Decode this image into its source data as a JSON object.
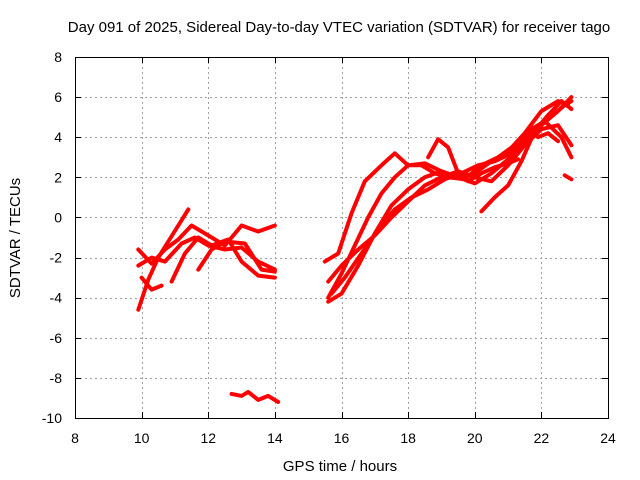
{
  "chart_data": {
    "type": "scatter",
    "title": "Day 091 of 2025, Sidereal Day-to-day VTEC variation (SDTVAR) for receiver tago",
    "xlabel": "GPS time / hours",
    "ylabel": "SDTVAR / TECUs",
    "xlim": [
      8,
      24
    ],
    "ylim": [
      -10,
      8
    ],
    "xticks": [
      "8",
      "10",
      "12",
      "14",
      "16",
      "18",
      "20",
      "22",
      "24"
    ],
    "yticks": [
      "-10",
      "-8",
      "-6",
      "-4",
      "-2",
      "0",
      "2",
      "4",
      "6",
      "8"
    ],
    "grid": true,
    "color": "#ff0000",
    "series": [
      {
        "x": [
          9.9,
          10.2,
          10.5,
          10.8,
          11.1,
          11.4
        ],
        "y": [
          -4.6,
          -3.1,
          -2.0,
          -1.2,
          -0.4,
          0.4
        ]
      },
      {
        "x": [
          9.9,
          10.3,
          10.7,
          11.1,
          11.5,
          12.0,
          12.5,
          13.0,
          13.5,
          14.0
        ],
        "y": [
          -1.6,
          -2.3,
          -1.6,
          -1.1,
          -0.4,
          -0.9,
          -1.4,
          -0.4,
          -0.7,
          -0.4
        ]
      },
      {
        "x": [
          9.9,
          10.3,
          10.7,
          11.2,
          11.6,
          12.0,
          12.5,
          13.0,
          13.5,
          14.0
        ],
        "y": [
          -2.4,
          -2.0,
          -2.2,
          -1.3,
          -1.0,
          -1.4,
          -1.6,
          -1.5,
          -2.2,
          -2.6
        ]
      },
      {
        "x": [
          10.0,
          10.3,
          10.6
        ],
        "y": [
          -3.0,
          -3.6,
          -3.4
        ]
      },
      {
        "x": [
          10.9,
          11.3,
          11.7,
          12.1,
          12.6,
          13.0,
          13.5,
          14.0
        ],
        "y": [
          -3.2,
          -1.8,
          -1.0,
          -1.4,
          -1.1,
          -2.2,
          -2.9,
          -3.0
        ]
      },
      {
        "x": [
          11.7,
          12.1,
          12.5,
          13.1,
          13.6,
          14.0
        ],
        "y": [
          -2.6,
          -1.6,
          -1.2,
          -1.3,
          -2.6,
          -2.7
        ]
      },
      {
        "x": [
          12.7,
          13.0,
          13.2,
          13.5,
          13.8,
          14.1
        ],
        "y": [
          -8.8,
          -8.9,
          -8.7,
          -9.1,
          -8.9,
          -9.2
        ]
      },
      {
        "x": [
          15.5,
          15.9,
          16.3,
          16.7,
          17.2,
          17.6,
          18.0,
          18.5,
          19.0,
          19.5,
          20.0,
          20.5,
          21.0,
          21.5,
          22.0,
          22.5,
          22.8
        ],
        "y": [
          -2.2,
          -1.8,
          0.2,
          1.8,
          2.6,
          3.2,
          2.6,
          2.7,
          2.3,
          2.0,
          2.2,
          2.8,
          3.3,
          4.2,
          5.3,
          5.8,
          5.6
        ]
      },
      {
        "x": [
          15.6,
          16.0,
          16.4,
          16.8,
          17.2,
          17.6,
          18.0,
          18.4,
          18.8,
          19.2,
          19.7,
          20.2,
          20.7,
          21.2,
          21.7,
          22.2,
          22.7,
          22.9
        ],
        "y": [
          -4.0,
          -2.8,
          -1.4,
          0.0,
          1.2,
          2.0,
          2.6,
          2.6,
          2.2,
          2.0,
          1.9,
          2.6,
          3.0,
          3.6,
          4.4,
          4.9,
          5.6,
          5.8
        ]
      },
      {
        "x": [
          15.6,
          16.0,
          16.5,
          17.0,
          17.5,
          18.0,
          18.5,
          19.0,
          19.5,
          20.0,
          20.5,
          21.0,
          21.5,
          22.0,
          22.5,
          22.9
        ],
        "y": [
          -4.2,
          -3.8,
          -2.4,
          -0.8,
          0.6,
          1.4,
          2.0,
          2.3,
          2.0,
          1.7,
          2.2,
          2.9,
          3.8,
          4.6,
          5.3,
          6.0
        ]
      },
      {
        "x": [
          15.6,
          16.0,
          16.5,
          17.0,
          17.5,
          18.0,
          18.5,
          19.0,
          19.5,
          20.0,
          20.5,
          21.0,
          21.5,
          22.0,
          22.5,
          22.9
        ],
        "y": [
          -3.2,
          -2.4,
          -1.6,
          -0.9,
          0.0,
          0.8,
          1.6,
          2.0,
          2.3,
          2.0,
          1.8,
          2.6,
          3.6,
          4.4,
          4.6,
          3.6
        ]
      },
      {
        "x": [
          15.7,
          16.1,
          16.6,
          17.1,
          17.6,
          18.1,
          18.6,
          19.1,
          19.6,
          20.1,
          20.6,
          21.1,
          21.6,
          22.1,
          22.6,
          22.9
        ],
        "y": [
          -3.8,
          -3.0,
          -1.8,
          -0.6,
          0.4,
          1.0,
          1.4,
          1.9,
          2.2,
          2.6,
          2.8,
          3.2,
          4.2,
          4.8,
          4.0,
          3.0
        ]
      },
      {
        "x": [
          18.6,
          18.9,
          19.2,
          19.5,
          19.8,
          20.2,
          20.6,
          21.0,
          21.3
        ],
        "y": [
          3.0,
          3.9,
          3.5,
          2.2,
          1.8,
          2.2,
          2.5,
          2.7,
          2.9
        ]
      },
      {
        "x": [
          20.2,
          20.6,
          21.0,
          21.4,
          21.8,
          22.2,
          22.6,
          22.9
        ],
        "y": [
          0.3,
          1.0,
          1.6,
          2.8,
          4.3,
          5.1,
          5.8,
          5.4
        ]
      },
      {
        "x": [
          21.9,
          22.2,
          22.5
        ],
        "y": [
          4.0,
          4.2,
          3.8
        ]
      },
      {
        "x": [
          22.7,
          22.9
        ],
        "y": [
          2.1,
          1.9
        ]
      }
    ]
  }
}
